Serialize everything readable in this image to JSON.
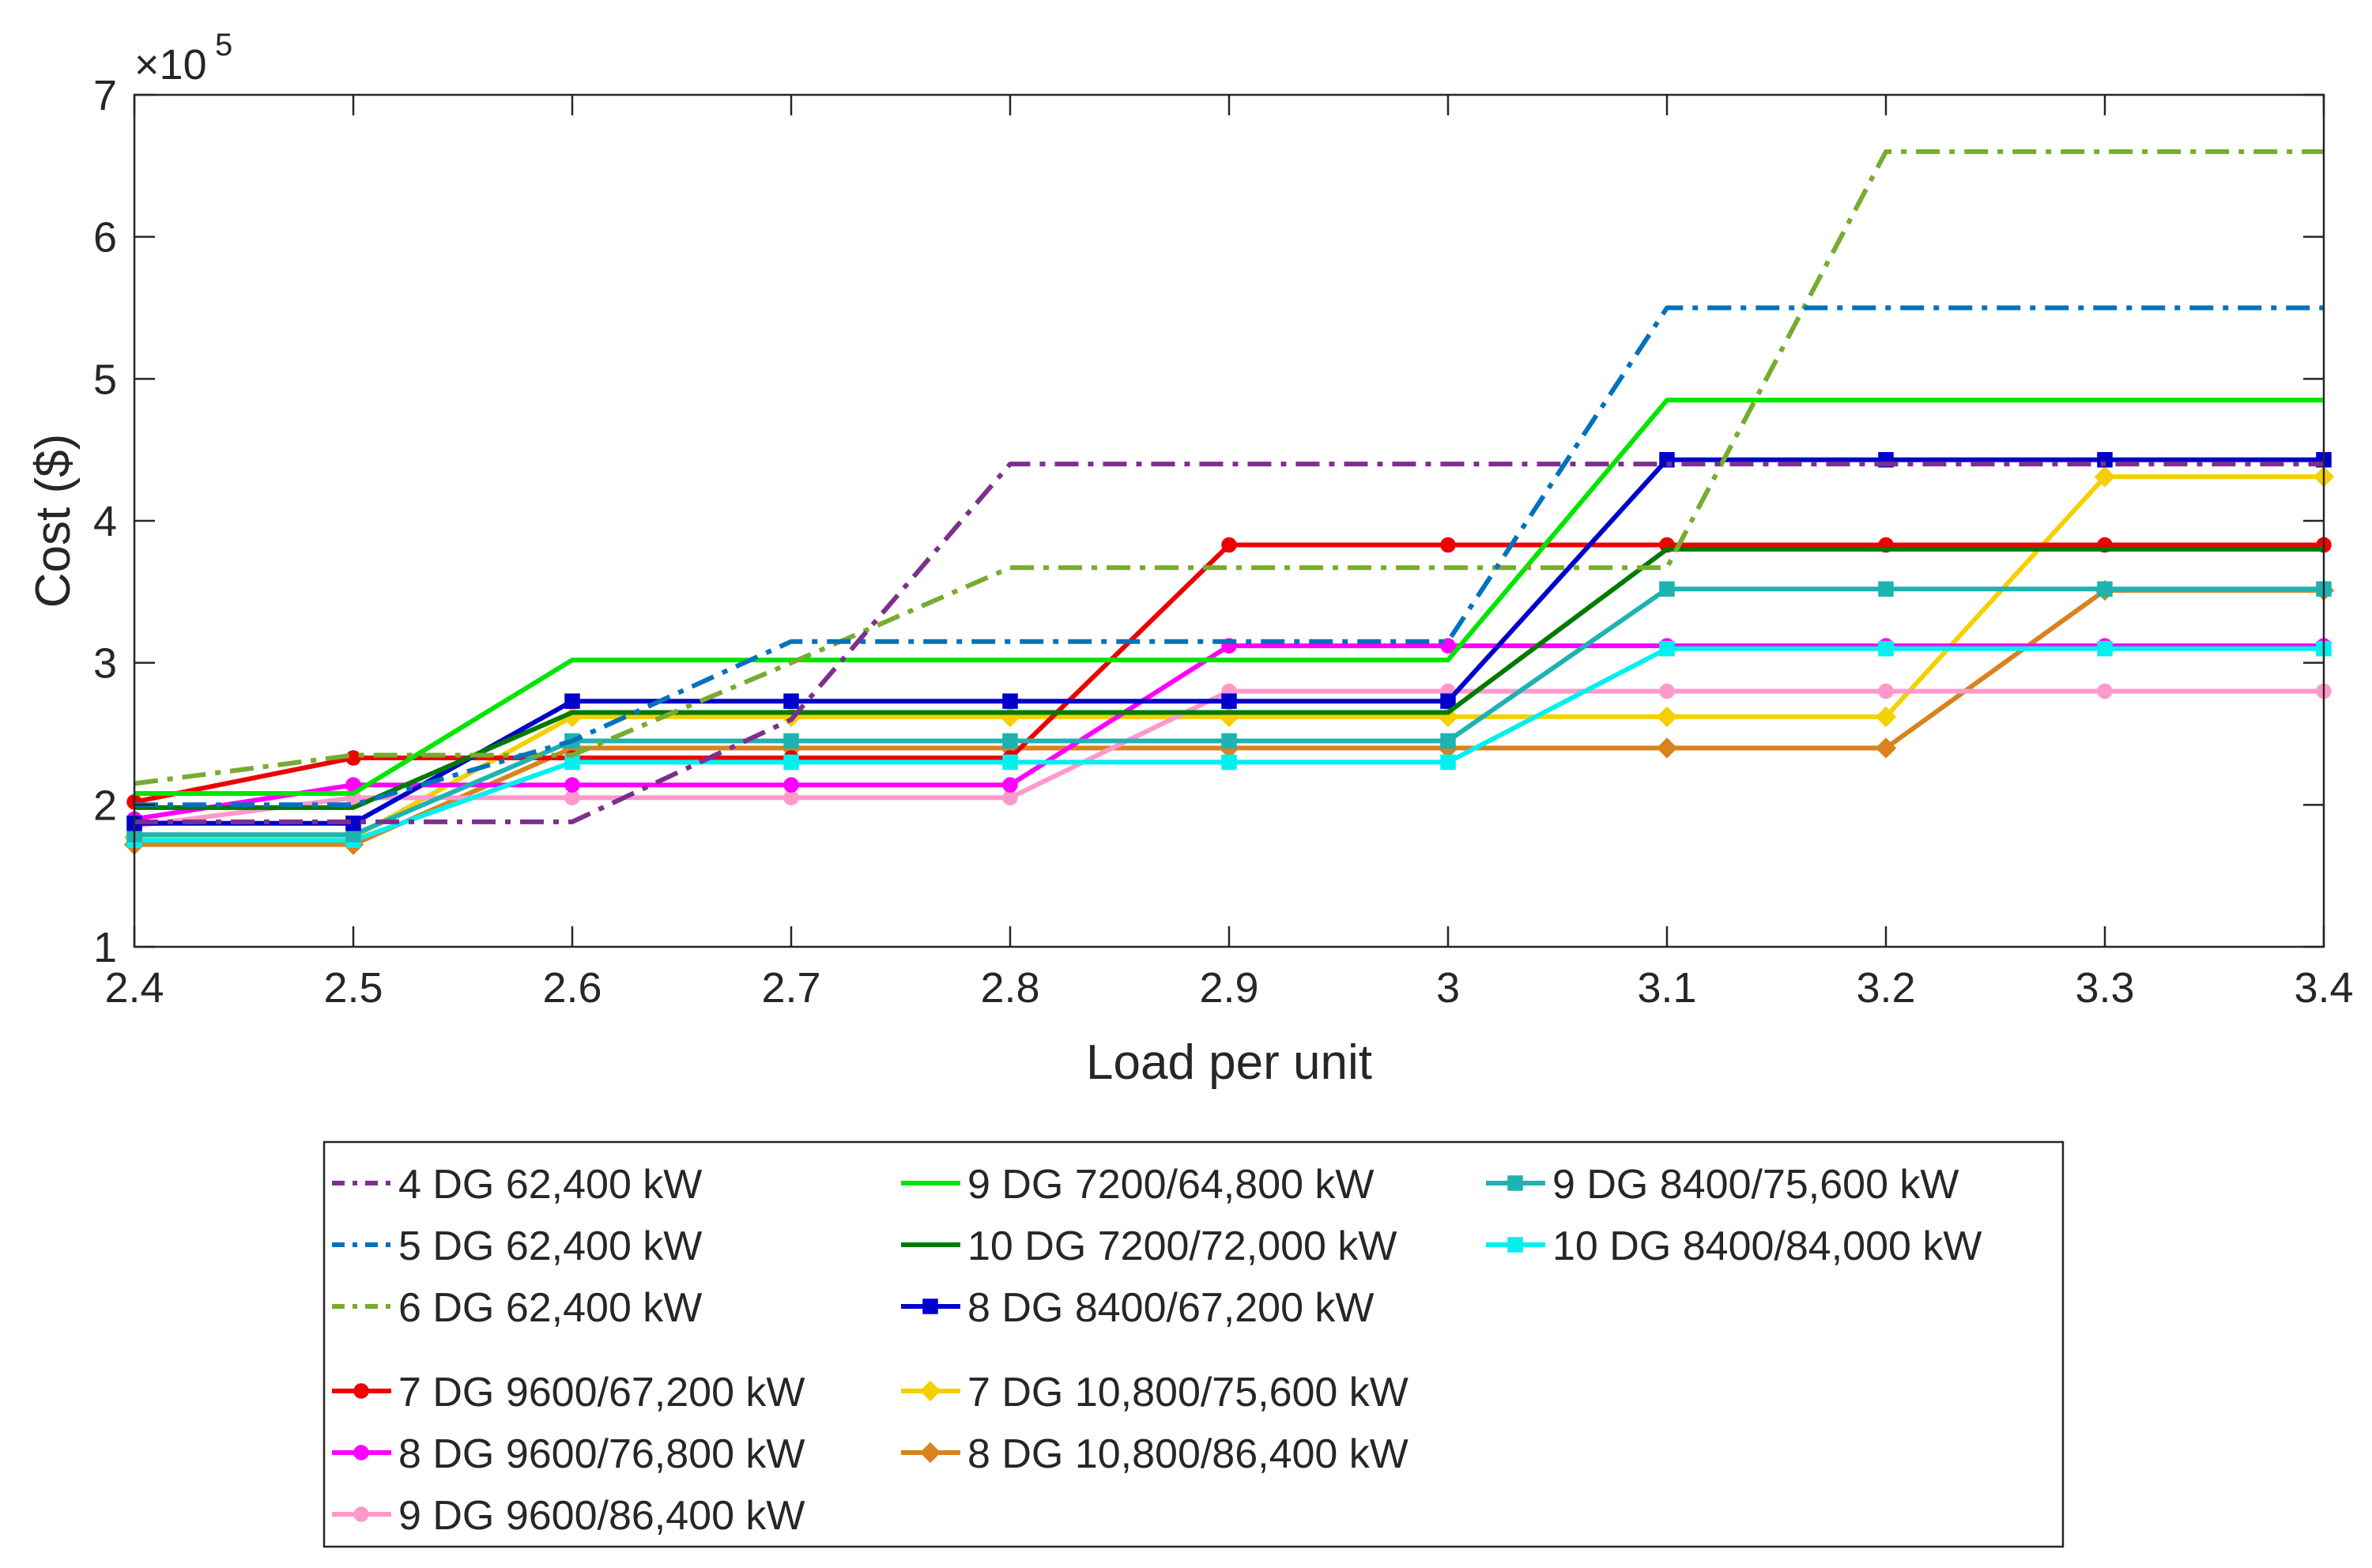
{
  "chart_data": {
    "type": "line",
    "title": "",
    "xlabel": "Load per unit",
    "ylabel": "Cost ($)",
    "y_multiplier_base": "×10",
    "y_multiplier_exponent": "5",
    "xlim": [
      2.4,
      3.4
    ],
    "ylim": [
      1,
      7
    ],
    "x_ticks": [
      2.4,
      2.5,
      2.6,
      2.7,
      2.8,
      2.9,
      3.0,
      3.1,
      3.2,
      3.3,
      3.4
    ],
    "x_tick_labels": [
      "2.4",
      "2.5",
      "2.6",
      "2.7",
      "2.8",
      "2.9",
      "3",
      "3.1",
      "3.2",
      "3.3",
      "3.4"
    ],
    "y_ticks": [
      1,
      2,
      3,
      4,
      5,
      6,
      7
    ],
    "y_tick_labels": [
      "1",
      "2",
      "3",
      "4",
      "5",
      "6",
      "7"
    ],
    "grid": false,
    "legend_position": "bottom-outside",
    "x": [
      2.4,
      2.5,
      2.6,
      2.7,
      2.8,
      2.9,
      3.0,
      3.1,
      3.2,
      3.3,
      3.4
    ],
    "series": [
      {
        "name": "4 DG 62,400 kW",
        "color": "#7E2F8E",
        "dash": "dashdot",
        "marker": "none",
        "group": 1,
        "values": [
          1.88,
          1.88,
          1.88,
          2.6,
          4.4,
          4.4,
          4.4,
          4.4,
          4.4,
          4.4,
          4.4
        ]
      },
      {
        "name": "5 DG 62,400 kW",
        "color": "#0072BD",
        "dash": "dashdot",
        "marker": "none",
        "group": 1,
        "values": [
          2.0,
          2.0,
          2.45,
          3.15,
          3.15,
          3.15,
          3.15,
          5.5,
          5.5,
          5.5,
          5.5
        ]
      },
      {
        "name": "6 DG 62,400 kW",
        "color": "#77AC30",
        "dash": "dashdot",
        "marker": "none",
        "group": 1,
        "values": [
          2.15,
          2.35,
          2.35,
          3.0,
          3.67,
          3.67,
          3.67,
          3.67,
          6.6,
          6.6,
          6.6
        ]
      },
      {
        "name": "9 DG 7200/64,800 kW",
        "color": "#00E600",
        "dash": "solid",
        "marker": "none",
        "group": 1,
        "values": [
          2.08,
          2.08,
          3.02,
          3.02,
          3.02,
          3.02,
          3.02,
          4.85,
          4.85,
          4.85,
          4.85
        ]
      },
      {
        "name": "10 DG 7200/72,000 kW",
        "color": "#007A00",
        "dash": "solid",
        "marker": "none",
        "group": 1,
        "values": [
          1.98,
          1.98,
          2.65,
          2.65,
          2.65,
          2.65,
          2.65,
          3.8,
          3.8,
          3.8,
          3.8
        ]
      },
      {
        "name": "8 DG 8400/67,200 kW",
        "color": "#0000CC",
        "dash": "solid",
        "marker": "square",
        "group": 1,
        "values": [
          1.87,
          1.87,
          2.73,
          2.73,
          2.73,
          2.73,
          2.73,
          4.43,
          4.43,
          4.43,
          4.43
        ]
      },
      {
        "name": "9 DG 8400/75,600 kW",
        "color": "#1FB2B2",
        "dash": "solid",
        "marker": "square",
        "group": 1,
        "values": [
          1.79,
          1.79,
          2.45,
          2.45,
          2.45,
          2.45,
          2.45,
          3.52,
          3.52,
          3.52,
          3.52
        ]
      },
      {
        "name": "10 DG 8400/84,000 kW",
        "color": "#00F0F0",
        "dash": "solid",
        "marker": "square",
        "group": 1,
        "values": [
          1.75,
          1.75,
          2.3,
          2.3,
          2.3,
          2.3,
          2.3,
          3.1,
          3.1,
          3.1,
          3.1
        ]
      },
      {
        "name": "7 DG 9600/67,200 kW",
        "color": "#EE0000",
        "dash": "solid",
        "marker": "circle",
        "group": 2,
        "values": [
          2.02,
          2.33,
          2.33,
          2.33,
          2.33,
          3.83,
          3.83,
          3.83,
          3.83,
          3.83,
          3.83
        ]
      },
      {
        "name": "8 DG 9600/76,800 kW",
        "color": "#FF00FF",
        "dash": "solid",
        "marker": "circle",
        "group": 2,
        "values": [
          1.9,
          2.14,
          2.14,
          2.14,
          2.14,
          3.12,
          3.12,
          3.12,
          3.12,
          3.12,
          3.12
        ]
      },
      {
        "name": "9 DG 9600/86,400 kW",
        "color": "#FF99CC",
        "dash": "solid",
        "marker": "circle",
        "group": 2,
        "values": [
          1.85,
          2.05,
          2.05,
          2.05,
          2.05,
          2.8,
          2.8,
          2.8,
          2.8,
          2.8,
          2.8
        ]
      },
      {
        "name": "7 DG 10,800/75,600 kW",
        "color": "#F5D000",
        "dash": "solid",
        "marker": "diamond",
        "group": 2,
        "values": [
          1.77,
          1.77,
          2.62,
          2.62,
          2.62,
          2.62,
          2.62,
          2.62,
          2.62,
          4.31,
          4.31
        ]
      },
      {
        "name": "8 DG 10,800/86,400 kW",
        "color": "#D9821F",
        "dash": "solid",
        "marker": "diamond",
        "group": 2,
        "values": [
          1.72,
          1.72,
          2.4,
          2.4,
          2.4,
          2.4,
          2.4,
          2.4,
          2.4,
          3.51,
          3.51
        ]
      }
    ]
  }
}
